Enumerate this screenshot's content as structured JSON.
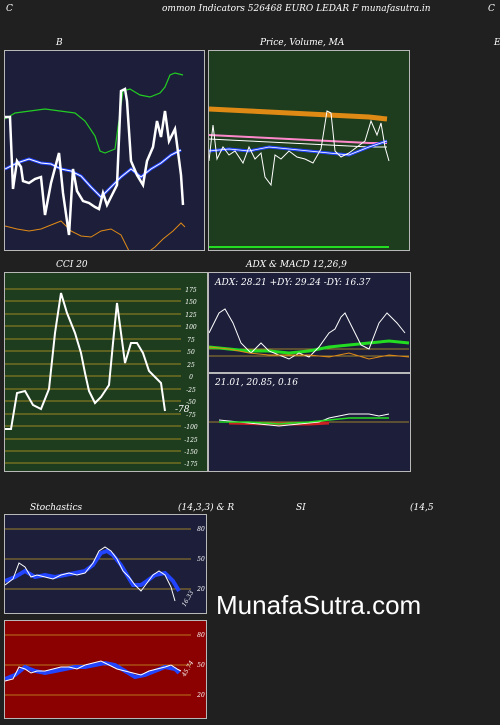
{
  "header": {
    "left_letter": "C",
    "title": "ommon  Indicators 526468  EURO LEDAR F munafasutra.in",
    "right_letter": "C"
  },
  "bb": {
    "label": "B"
  },
  "price": {
    "label": "Price,  Volume,  MA",
    "right_letter": "E"
  },
  "cci": {
    "label": "CCI 20",
    "levels": [
      "175",
      "150",
      "125",
      "100",
      "75",
      "50",
      "25",
      "0",
      "-25",
      "-50",
      "-75",
      "-100",
      "-125",
      "-150",
      "-175"
    ],
    "current": "-78"
  },
  "adx": {
    "label": "ADX  & MACD 12,26,9",
    "values": "ADX: 28.21  +DY: 29.24  -DY: 16.37"
  },
  "macd": {
    "values": "21.01,  20.85,  0.16"
  },
  "stoch": {
    "label": "Stochastics",
    "params": "(14,3,3) & R",
    "levels": [
      "80",
      "50",
      "20"
    ],
    "current": "16.33"
  },
  "rsi": {
    "label": "SI",
    "params": "(14,5",
    "levels": [
      "80",
      "50",
      "20"
    ],
    "current": "45.74"
  },
  "watermark": "MunafaSutra.com",
  "colors": {
    "panel_navy": "#1c1e3a",
    "panel_green": "#1e3d1e",
    "panel_red": "#8b0000",
    "accent_orange": "#e08a16",
    "accent_blue": "#1a3cff",
    "accent_green": "#22dd22"
  }
}
